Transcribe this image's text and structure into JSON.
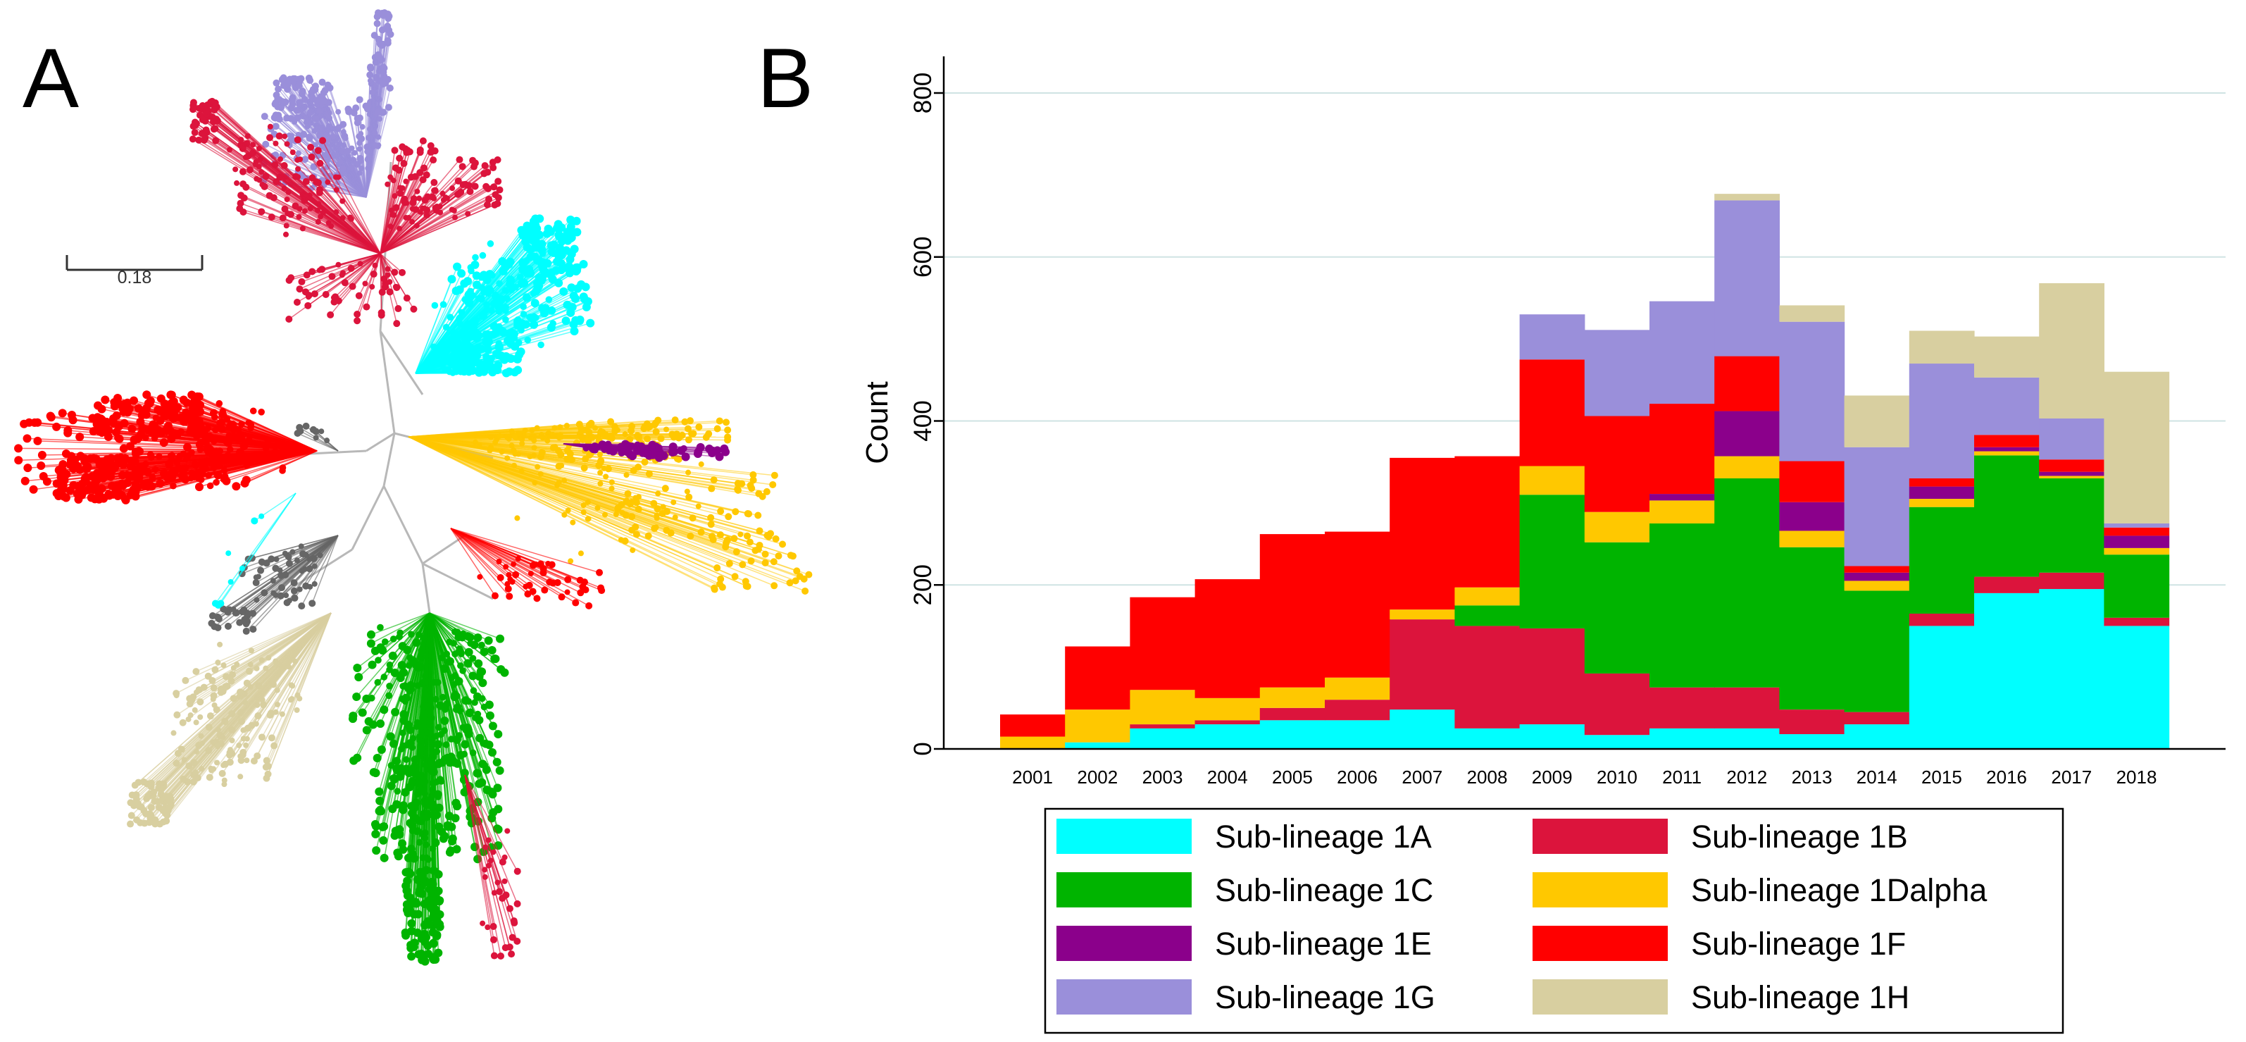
{
  "panels": {
    "a_label": "A",
    "b_label": "B"
  },
  "tree": {
    "scale_label": "0.18",
    "clade_colors": {
      "1A": "#00FFFF",
      "1B": "#DC143C",
      "1C": "#00B400",
      "1Dalpha": "#FFC800",
      "1E": "#8B008B",
      "1F": "#FF0000",
      "1G": "#9A8FDA",
      "1H": "#D8CFA0",
      "unassigned": "#666666"
    }
  },
  "chart_data": {
    "type": "bar",
    "stacked": true,
    "title": "",
    "xlabel": "",
    "ylabel": "Count",
    "ylim": [
      0,
      840
    ],
    "yticks": [
      0,
      200,
      400,
      600,
      800
    ],
    "grid": true,
    "legend_position": "bottom",
    "categories": [
      "2001",
      "2002",
      "2003",
      "2004",
      "2005",
      "2006",
      "2007",
      "2008",
      "2009",
      "2010",
      "2011",
      "2012",
      "2013",
      "2014",
      "2015",
      "2016",
      "2017",
      "2018"
    ],
    "series": [
      {
        "name": "Sub-lineage 1A",
        "color": "#00FFFF",
        "values": [
          0,
          8,
          25,
          30,
          35,
          35,
          48,
          25,
          30,
          17,
          25,
          25,
          18,
          30,
          150,
          190,
          195,
          150
        ]
      },
      {
        "name": "Sub-lineage 1B",
        "color": "#DC143C",
        "values": [
          0,
          0,
          5,
          5,
          15,
          25,
          110,
          125,
          117,
          75,
          50,
          50,
          30,
          15,
          15,
          20,
          20,
          10
        ]
      },
      {
        "name": "Sub-lineage 1C",
        "color": "#00B400",
        "values": [
          0,
          0,
          0,
          0,
          0,
          0,
          0,
          25,
          163,
          160,
          200,
          255,
          198,
          148,
          130,
          148,
          115,
          77
        ]
      },
      {
        "name": "Sub-lineage 1Dalpha",
        "color": "#FFC800",
        "values": [
          15,
          40,
          42,
          27,
          25,
          27,
          12,
          22,
          35,
          37,
          28,
          27,
          20,
          12,
          10,
          5,
          3,
          8
        ]
      },
      {
        "name": "Sub-lineage 1E",
        "color": "#8B008B",
        "values": [
          0,
          0,
          0,
          0,
          0,
          0,
          0,
          0,
          0,
          0,
          8,
          55,
          35,
          10,
          15,
          5,
          5,
          15
        ]
      },
      {
        "name": "Sub-lineage 1F",
        "color": "#FF0000",
        "values": [
          27,
          77,
          113,
          145,
          187,
          178,
          185,
          160,
          130,
          117,
          110,
          67,
          50,
          8,
          10,
          15,
          15,
          10
        ]
      },
      {
        "name": "Sub-lineage 1G",
        "color": "#9A8FDA",
        "values": [
          0,
          0,
          0,
          0,
          0,
          0,
          0,
          0,
          55,
          105,
          125,
          190,
          170,
          145,
          140,
          70,
          50,
          5
        ]
      },
      {
        "name": "Sub-lineage 1H",
        "color": "#D8CFA0",
        "values": [
          0,
          0,
          0,
          0,
          0,
          0,
          0,
          0,
          0,
          0,
          0,
          8,
          20,
          63,
          40,
          50,
          165,
          185
        ]
      }
    ],
    "legend_order": [
      "Sub-lineage 1A",
      "Sub-lineage 1B",
      "Sub-lineage 1C",
      "Sub-lineage 1Dalpha",
      "Sub-lineage 1E",
      "Sub-lineage 1F",
      "Sub-lineage 1G",
      "Sub-lineage 1H"
    ]
  }
}
